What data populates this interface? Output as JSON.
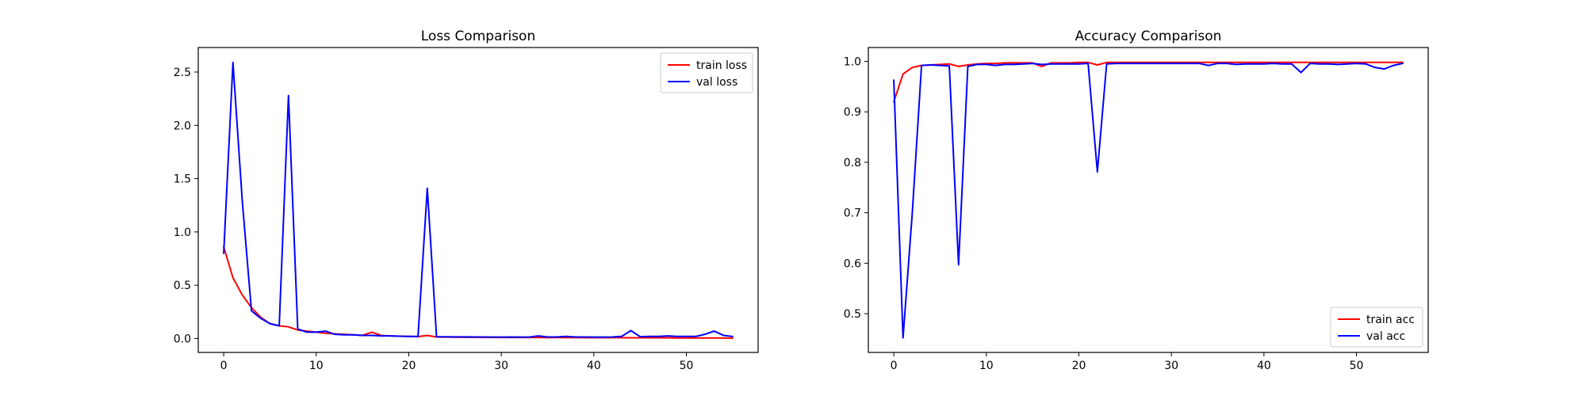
{
  "colors": {
    "train": "#ff0000",
    "val": "#0000ff"
  },
  "chart_data": [
    {
      "type": "line",
      "title": "Loss Comparison",
      "xlabel": "",
      "ylabel": "",
      "xlim": [
        -2.75,
        57.75
      ],
      "ylim": [
        -0.13,
        2.73
      ],
      "xticks": [
        0,
        10,
        20,
        30,
        40,
        50
      ],
      "xtick_labels": [
        "0",
        "10",
        "20",
        "30",
        "40",
        "50"
      ],
      "yticks": [
        0.0,
        0.5,
        1.0,
        1.5,
        2.0,
        2.5
      ],
      "ytick_labels": [
        "0.0",
        "0.5",
        "1.0",
        "1.5",
        "2.0",
        "2.5"
      ],
      "grid": false,
      "legend_position": "top-right",
      "x": [
        0,
        1,
        2,
        3,
        4,
        5,
        6,
        7,
        8,
        9,
        10,
        11,
        12,
        13,
        14,
        15,
        16,
        17,
        18,
        19,
        20,
        21,
        22,
        23,
        24,
        25,
        26,
        27,
        28,
        29,
        30,
        31,
        32,
        33,
        34,
        35,
        36,
        37,
        38,
        39,
        40,
        41,
        42,
        43,
        44,
        45,
        46,
        47,
        48,
        49,
        50,
        51,
        52,
        53,
        54,
        55
      ],
      "series": [
        {
          "name": "train loss",
          "color": "#ff0000",
          "values": [
            0.86,
            0.57,
            0.41,
            0.29,
            0.2,
            0.14,
            0.12,
            0.11,
            0.08,
            0.07,
            0.06,
            0.05,
            0.045,
            0.04,
            0.035,
            0.03,
            0.06,
            0.03,
            0.025,
            0.022,
            0.02,
            0.018,
            0.03,
            0.015,
            0.014,
            0.013,
            0.012,
            0.012,
            0.011,
            0.011,
            0.01,
            0.01,
            0.01,
            0.01,
            0.01,
            0.009,
            0.009,
            0.009,
            0.009,
            0.008,
            0.008,
            0.008,
            0.008,
            0.008,
            0.007,
            0.007,
            0.007,
            0.007,
            0.007,
            0.006,
            0.006,
            0.006,
            0.006,
            0.006,
            0.005,
            0.005
          ]
        },
        {
          "name": "val loss",
          "color": "#0000ff",
          "values": [
            0.8,
            2.59,
            1.3,
            0.26,
            0.19,
            0.14,
            0.12,
            2.28,
            0.09,
            0.06,
            0.06,
            0.07,
            0.04,
            0.035,
            0.035,
            0.03,
            0.03,
            0.025,
            0.025,
            0.022,
            0.02,
            0.02,
            1.41,
            0.018,
            0.017,
            0.016,
            0.016,
            0.015,
            0.015,
            0.014,
            0.014,
            0.015,
            0.014,
            0.014,
            0.025,
            0.015,
            0.015,
            0.02,
            0.015,
            0.015,
            0.014,
            0.014,
            0.015,
            0.02,
            0.075,
            0.018,
            0.02,
            0.02,
            0.025,
            0.02,
            0.02,
            0.02,
            0.04,
            0.07,
            0.03,
            0.02
          ]
        }
      ]
    },
    {
      "type": "line",
      "title": "Accuracy Comparison",
      "xlabel": "",
      "ylabel": "",
      "xlim": [
        -2.75,
        57.75
      ],
      "ylim": [
        0.4232,
        1.0275
      ],
      "xticks": [
        0,
        10,
        20,
        30,
        40,
        50
      ],
      "xtick_labels": [
        "0",
        "10",
        "20",
        "30",
        "40",
        "50"
      ],
      "yticks": [
        0.5,
        0.6,
        0.7,
        0.8,
        0.9,
        1.0
      ],
      "ytick_labels": [
        "0.5",
        "0.6",
        "0.7",
        "0.8",
        "0.9",
        "1.0"
      ],
      "grid": false,
      "legend_position": "bottom-right",
      "x": [
        0,
        1,
        2,
        3,
        4,
        5,
        6,
        7,
        8,
        9,
        10,
        11,
        12,
        13,
        14,
        15,
        16,
        17,
        18,
        19,
        20,
        21,
        22,
        23,
        24,
        25,
        26,
        27,
        28,
        29,
        30,
        31,
        32,
        33,
        34,
        35,
        36,
        37,
        38,
        39,
        40,
        41,
        42,
        43,
        44,
        45,
        46,
        47,
        48,
        49,
        50,
        51,
        52,
        53,
        54,
        55
      ],
      "series": [
        {
          "name": "train acc",
          "color": "#ff0000",
          "values": [
            0.92,
            0.975,
            0.988,
            0.992,
            0.993,
            0.994,
            0.995,
            0.99,
            0.993,
            0.995,
            0.996,
            0.996,
            0.997,
            0.997,
            0.997,
            0.997,
            0.99,
            0.997,
            0.997,
            0.997,
            0.998,
            0.998,
            0.993,
            0.998,
            0.998,
            0.998,
            0.998,
            0.998,
            0.998,
            0.998,
            0.998,
            0.998,
            0.998,
            0.998,
            0.998,
            0.998,
            0.998,
            0.998,
            0.998,
            0.998,
            0.998,
            0.998,
            0.998,
            0.998,
            0.998,
            0.998,
            0.998,
            0.998,
            0.998,
            0.998,
            0.998,
            0.998,
            0.998,
            0.998,
            0.998,
            0.998
          ]
        },
        {
          "name": "val acc",
          "color": "#0000ff",
          "values": [
            0.963,
            0.452,
            0.7,
            0.992,
            0.993,
            0.992,
            0.991,
            0.597,
            0.99,
            0.994,
            0.994,
            0.992,
            0.994,
            0.994,
            0.995,
            0.996,
            0.994,
            0.995,
            0.995,
            0.995,
            0.995,
            0.996,
            0.781,
            0.995,
            0.996,
            0.996,
            0.996,
            0.996,
            0.996,
            0.996,
            0.996,
            0.996,
            0.996,
            0.996,
            0.992,
            0.996,
            0.996,
            0.994,
            0.995,
            0.995,
            0.995,
            0.996,
            0.995,
            0.995,
            0.978,
            0.996,
            0.995,
            0.995,
            0.994,
            0.995,
            0.996,
            0.995,
            0.988,
            0.985,
            0.992,
            0.996
          ]
        }
      ]
    }
  ]
}
